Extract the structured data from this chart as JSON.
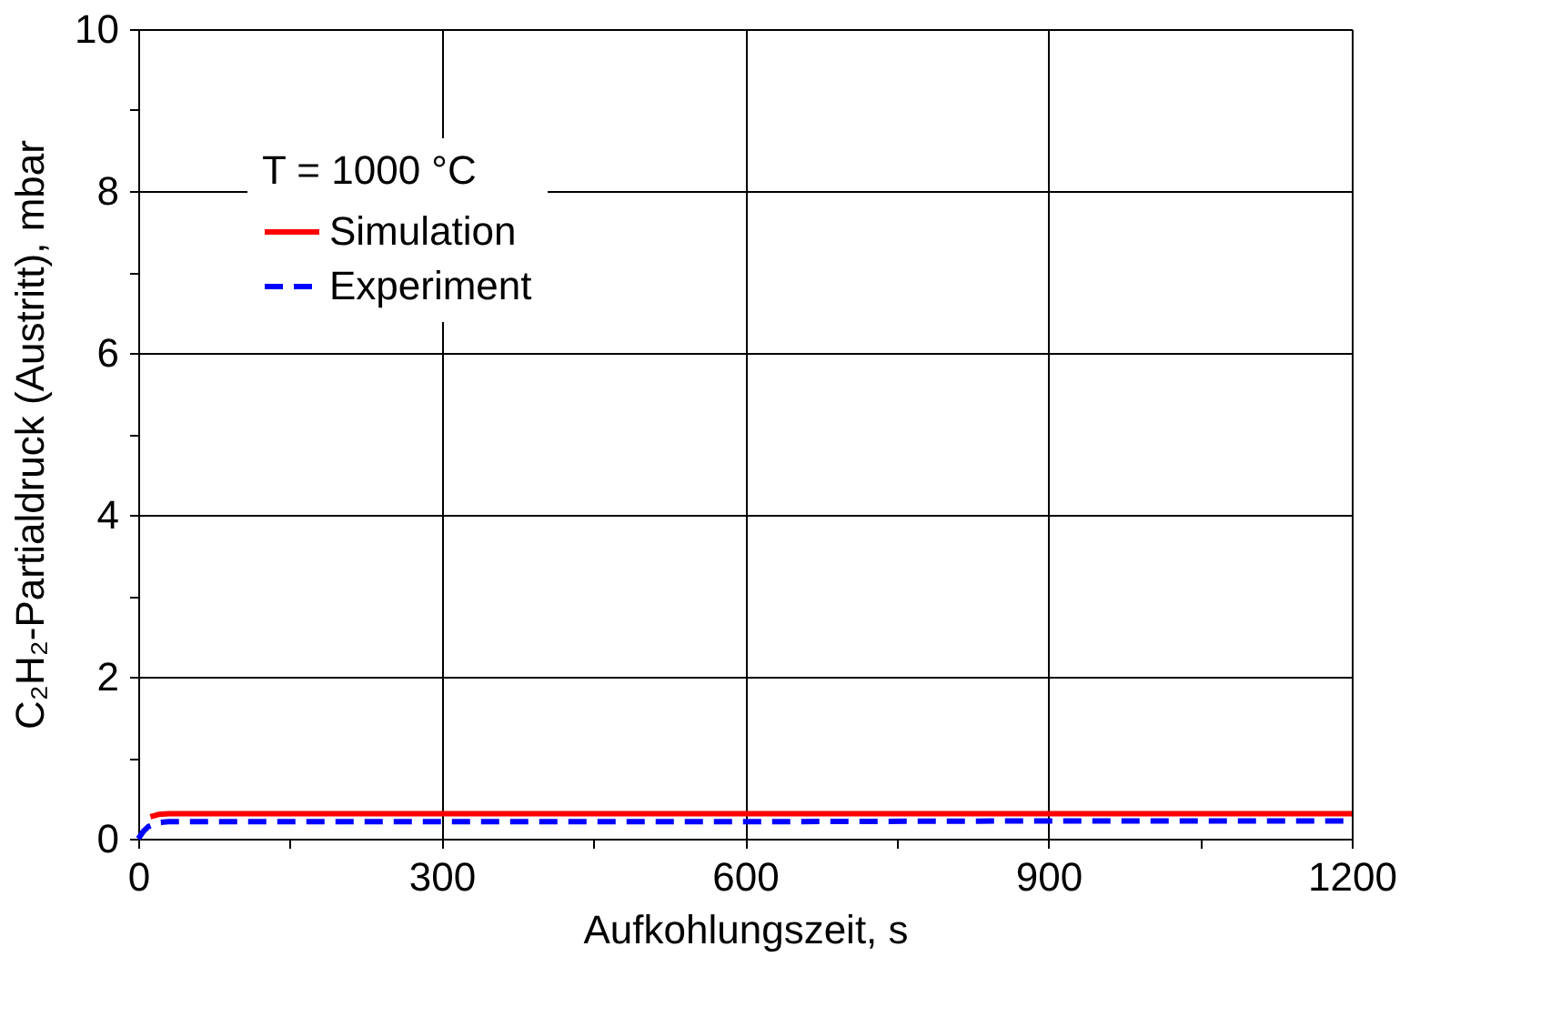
{
  "chart_data": {
    "type": "line",
    "xlabel": "Aufkohlungszeit, s",
    "ylabel": "C₂H₂-Partialdruck (Austritt), mbar",
    "legend_title": "T = 1000 °C",
    "series": [
      {
        "name": "Simulation",
        "color": "#ff0000",
        "line_style": "solid",
        "x": [
          12,
          20,
          30,
          100,
          300,
          600,
          900,
          1200
        ],
        "values": [
          0.27,
          0.3,
          0.31,
          0.31,
          0.31,
          0.31,
          0.31,
          0.31
        ]
      },
      {
        "name": "Experiment",
        "color": "#0000ff",
        "line_style": "dashed",
        "x": [
          0,
          5,
          10,
          20,
          30,
          100,
          300,
          600,
          900,
          1200
        ],
        "values": [
          0,
          0.09,
          0.15,
          0.2,
          0.21,
          0.21,
          0.21,
          0.21,
          0.22,
          0.22
        ]
      }
    ],
    "xlim": [
      0,
      1200
    ],
    "ylim": [
      0,
      10
    ],
    "xticks": [
      0,
      {
        "value": 150,
        "label": null
      },
      300,
      {
        "value": 450,
        "label": null
      },
      600,
      {
        "value": 750,
        "label": null
      },
      900,
      {
        "value": 1050,
        "label": null
      },
      1200
    ],
    "yticks": [
      0,
      {
        "value": 1,
        "label": null
      },
      2,
      {
        "value": 3,
        "label": null
      },
      4,
      {
        "value": 5,
        "label": null
      },
      6,
      {
        "value": 7,
        "label": null
      },
      8,
      {
        "value": 9,
        "label": null
      },
      10
    ],
    "grid": true,
    "legend": "top left",
    "marker": "none"
  }
}
